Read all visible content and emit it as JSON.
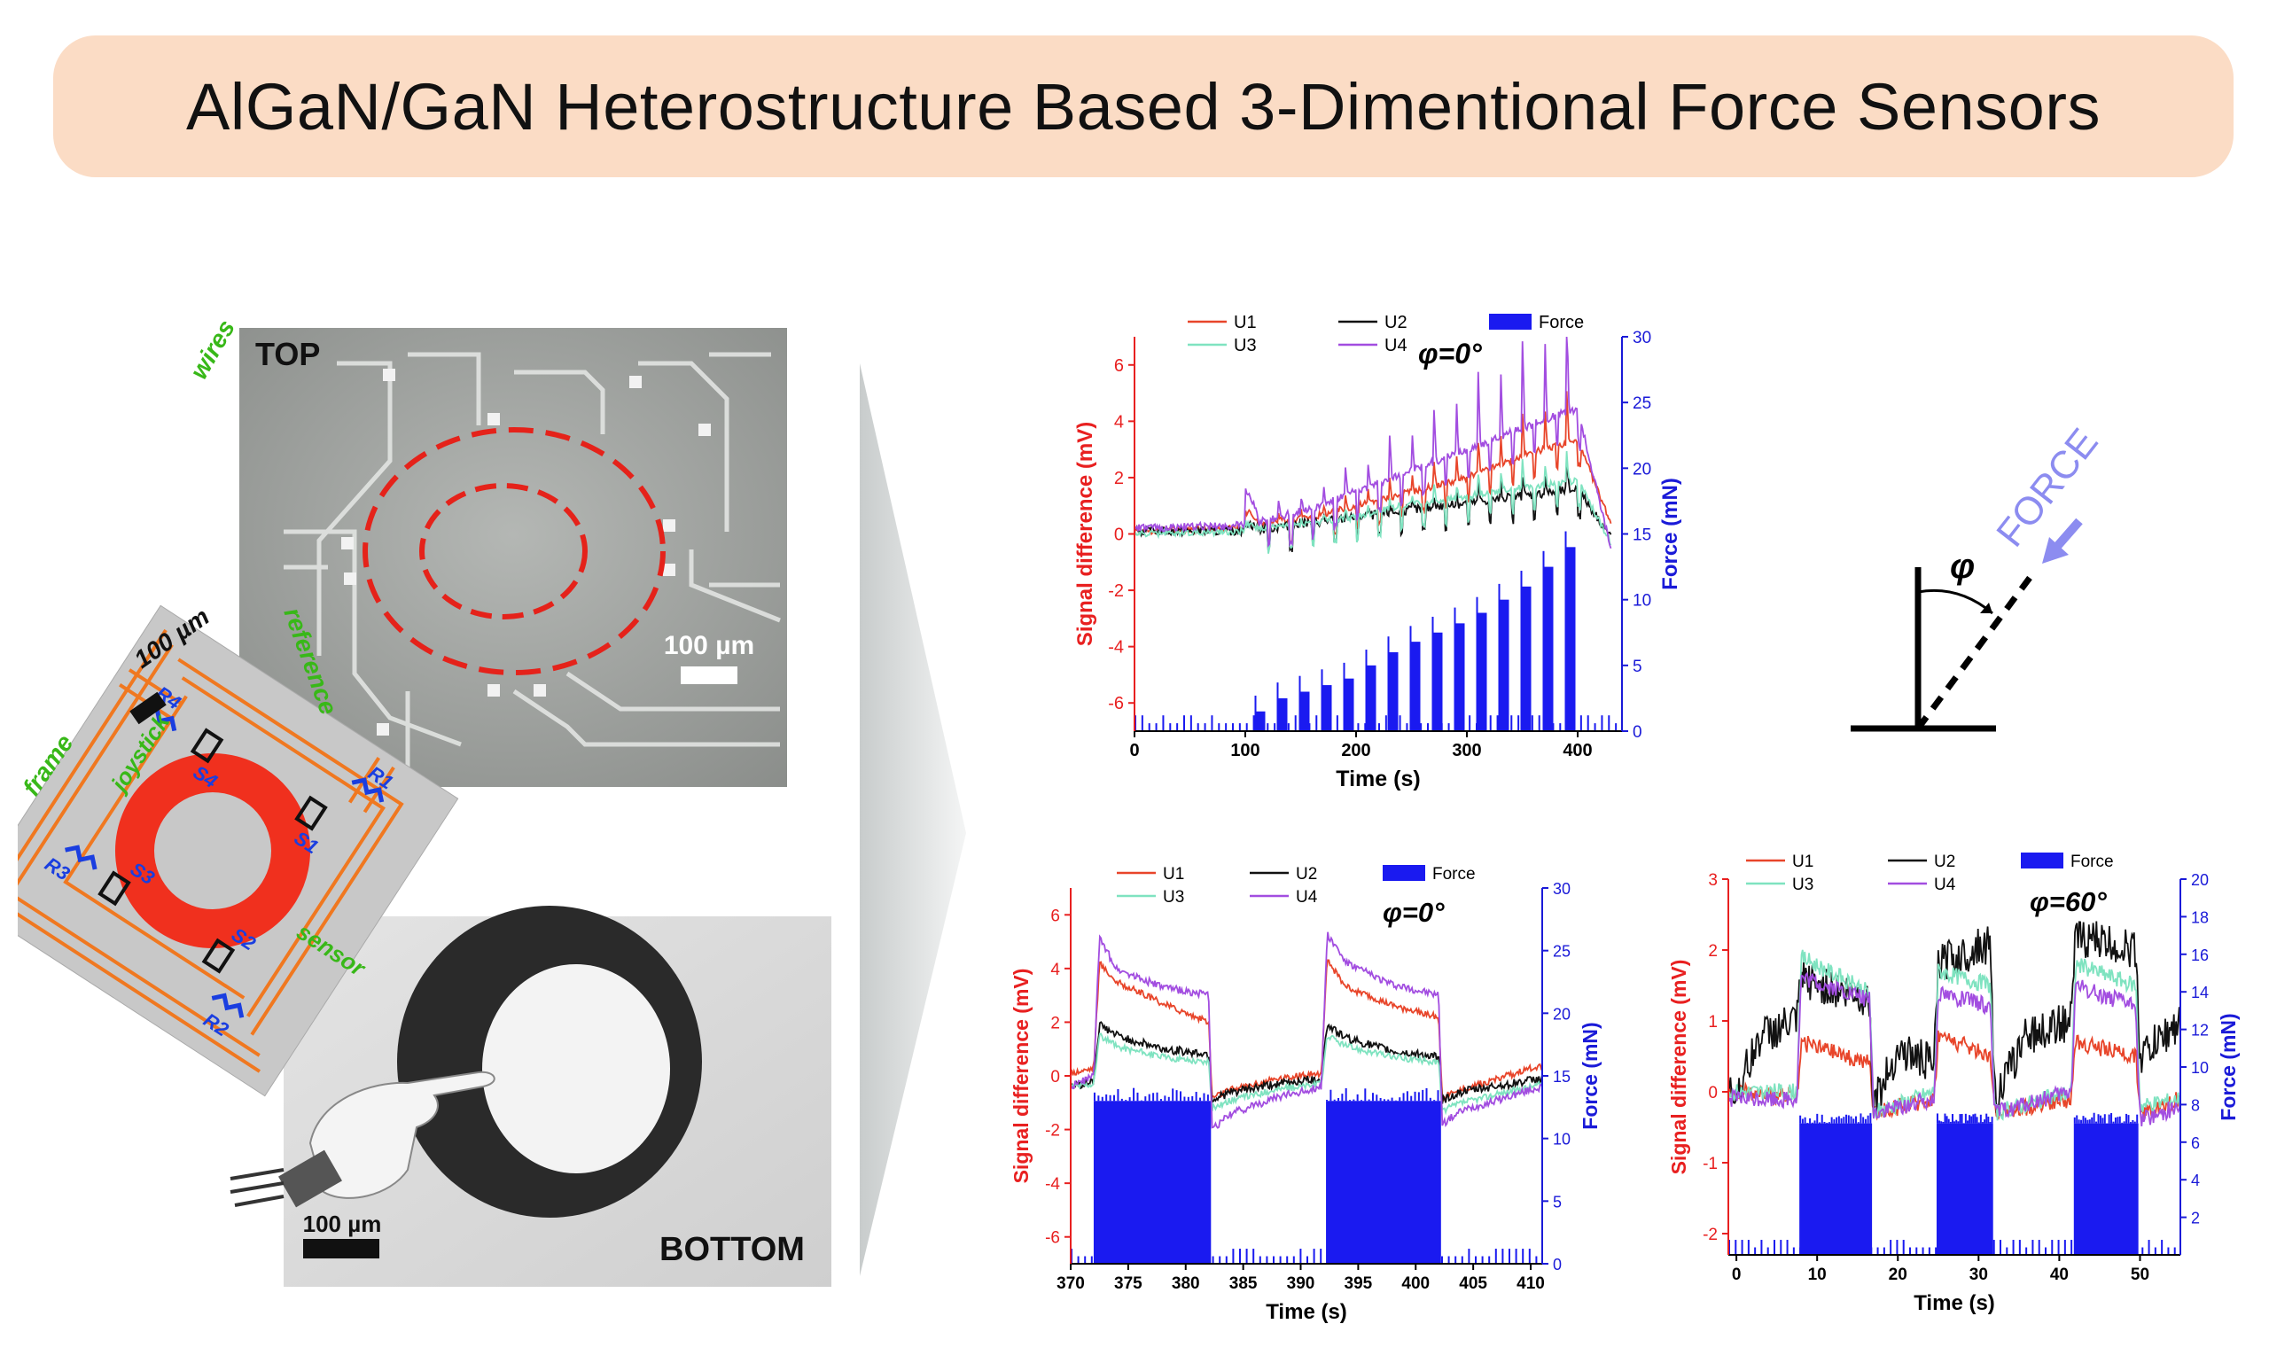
{
  "title": "AlGaN/GaN Heterostructure Based 3-Dimentional Force Sensors",
  "images": {
    "top_label": "TOP",
    "bottom_label": "BOTTOM",
    "top_scale": "100 µm",
    "bottom_scale": "100 µm",
    "schematic_scale": "100 µm",
    "schematic_labels": {
      "wires": "wires",
      "reference": "reference",
      "frame": "frame",
      "sensor": "sensor",
      "joystick": "joystick",
      "S1": "S1",
      "S2": "S2",
      "S3": "S3",
      "S4": "S4",
      "R1": "R1",
      "R2": "R2",
      "R3": "R3",
      "R4": "R4"
    }
  },
  "angle_diagram": {
    "force_label": "FORCE",
    "angle_symbol": "φ"
  },
  "colors": {
    "U1": "#e8452a",
    "U2": "#111111",
    "U3": "#7fe3c0",
    "U4": "#a24de0",
    "Force": "#1a1af0",
    "left_axis": "#e82020",
    "right_axis": "#1a1ad8",
    "banner": "#fbdcc5",
    "ring": "#f0301e",
    "wires": "#f07820",
    "schematic_text": "#38b818",
    "resistor": "#1a3ee0"
  },
  "chart_data": [
    {
      "type": "line",
      "angle_label": "φ=0°",
      "xlabel": "Time (s)",
      "ylabel_left": "Signal difference (mV)",
      "ylabel_right": "Force (mN)",
      "xlim": [
        0,
        440
      ],
      "ylim_left": [
        -7,
        7
      ],
      "ylim_right": [
        0,
        30
      ],
      "xticks": [
        0,
        100,
        200,
        300,
        400
      ],
      "yticks_left": [
        -6,
        -4,
        -2,
        0,
        2,
        4,
        6
      ],
      "yticks_right": [
        0,
        5,
        10,
        15,
        20,
        25,
        30
      ],
      "legend": [
        "U1",
        "U2",
        "U3",
        "U4",
        "Force"
      ],
      "series": [
        {
          "name": "U1",
          "x": [
            0,
            100,
            120,
            140,
            160,
            180,
            200,
            220,
            240,
            260,
            280,
            300,
            320,
            340,
            360,
            380,
            400,
            430
          ],
          "values": [
            0.1,
            0.2,
            0.4,
            0.5,
            0.6,
            0.8,
            1.0,
            1.2,
            1.4,
            1.6,
            1.8,
            2.0,
            2.3,
            2.6,
            2.9,
            3.1,
            3.3,
            0.4
          ]
        },
        {
          "name": "U2",
          "x": [
            0,
            100,
            120,
            140,
            160,
            180,
            200,
            220,
            240,
            260,
            280,
            300,
            320,
            340,
            360,
            380,
            400,
            430
          ],
          "values": [
            0.1,
            0.1,
            0.2,
            0.3,
            0.4,
            0.5,
            0.6,
            0.7,
            0.8,
            0.9,
            1.0,
            1.1,
            1.2,
            1.3,
            1.4,
            1.5,
            1.6,
            -0.1
          ]
        },
        {
          "name": "U3",
          "x": [
            0,
            100,
            120,
            140,
            160,
            180,
            200,
            220,
            240,
            260,
            280,
            300,
            320,
            340,
            360,
            380,
            400,
            430
          ],
          "values": [
            0.0,
            0.1,
            0.2,
            0.3,
            0.4,
            0.5,
            0.6,
            0.8,
            1.0,
            1.1,
            1.2,
            1.3,
            1.5,
            1.6,
            1.7,
            1.8,
            1.9,
            -0.3
          ]
        },
        {
          "name": "U4",
          "x": [
            0,
            100,
            120,
            140,
            160,
            180,
            200,
            220,
            240,
            260,
            280,
            300,
            320,
            340,
            360,
            380,
            400,
            430
          ],
          "values": [
            0.2,
            0.3,
            0.5,
            0.7,
            0.9,
            1.2,
            1.5,
            1.8,
            2.1,
            2.4,
            2.7,
            3.0,
            3.3,
            3.6,
            3.9,
            4.2,
            4.4,
            -0.5
          ]
        }
      ],
      "force_steps": {
        "x": [
          110,
          130,
          150,
          170,
          190,
          210,
          230,
          250,
          270,
          290,
          310,
          330,
          350,
          370,
          390
        ],
        "values": [
          1.5,
          2.5,
          3.0,
          3.5,
          4.0,
          5.0,
          6.0,
          6.8,
          7.5,
          8.2,
          9.0,
          10.0,
          11.0,
          12.5,
          14.0
        ]
      }
    },
    {
      "type": "line",
      "angle_label": "φ=0°",
      "xlabel": "Time (s)",
      "ylabel_left": "Signal difference (mV)",
      "ylabel_right": "Force (mN)",
      "xlim": [
        370,
        411
      ],
      "ylim_left": [
        -7,
        7
      ],
      "ylim_right": [
        0,
        30
      ],
      "xticks": [
        370,
        375,
        380,
        385,
        390,
        395,
        400,
        405,
        410
      ],
      "yticks_left": [
        -6,
        -4,
        -2,
        0,
        2,
        4,
        6
      ],
      "yticks_right": [
        0,
        5,
        10,
        15,
        20,
        25,
        30
      ],
      "legend": [
        "U1",
        "U2",
        "U3",
        "U4",
        "Force"
      ],
      "series": [
        {
          "name": "U1",
          "x": [
            370,
            372,
            372.5,
            374,
            378,
            382,
            382.3,
            384,
            388,
            391.8,
            392.3,
            394,
            398,
            402,
            402.3,
            404,
            411
          ],
          "values": [
            0.1,
            0.3,
            4.2,
            3.5,
            2.7,
            2.0,
            -0.8,
            -0.5,
            -0.1,
            0.1,
            4.3,
            3.3,
            2.6,
            2.2,
            -0.8,
            -0.5,
            0.4
          ]
        },
        {
          "name": "U2",
          "x": [
            370,
            372,
            372.5,
            374,
            378,
            382,
            382.3,
            384,
            388,
            391.8,
            392.3,
            394,
            398,
            402,
            402.3,
            404,
            411
          ],
          "values": [
            -0.4,
            -0.2,
            1.9,
            1.5,
            1.0,
            0.8,
            -0.9,
            -0.6,
            -0.3,
            -0.1,
            1.9,
            1.4,
            0.9,
            0.7,
            -0.9,
            -0.6,
            -0.1
          ]
        },
        {
          "name": "U3",
          "x": [
            370,
            372,
            372.5,
            374,
            378,
            382,
            382.3,
            384,
            388,
            391.8,
            392.3,
            394,
            398,
            402,
            402.3,
            404,
            411
          ],
          "values": [
            -0.4,
            -0.3,
            1.5,
            1.1,
            0.7,
            0.5,
            -1.2,
            -0.9,
            -0.5,
            -0.3,
            1.5,
            1.1,
            0.7,
            0.5,
            -1.3,
            -1.0,
            -0.3
          ]
        },
        {
          "name": "U4",
          "x": [
            370,
            372,
            372.5,
            374,
            378,
            382,
            382.3,
            384,
            388,
            391.8,
            392.3,
            394,
            398,
            402,
            402.3,
            404,
            411
          ],
          "values": [
            -0.4,
            0.0,
            5.1,
            4.0,
            3.3,
            3.0,
            -2.0,
            -1.4,
            -0.8,
            -0.4,
            5.3,
            4.2,
            3.4,
            3.0,
            -1.8,
            -1.3,
            -0.4
          ]
        }
      ],
      "force_pulses": [
        {
          "start": 372,
          "end": 382.2,
          "value": 13
        },
        {
          "start": 392.2,
          "end": 402.2,
          "value": 13
        }
      ]
    },
    {
      "type": "line",
      "angle_label": "φ=60°",
      "xlabel": "Time (s)",
      "ylabel_left": "Signal difference (mV)",
      "ylabel_right": "Force (mN)",
      "xlim": [
        -1,
        55
      ],
      "ylim_left": [
        -2.3,
        3
      ],
      "ylim_right": [
        0,
        20
      ],
      "xticks": [
        0,
        10,
        20,
        30,
        40,
        50
      ],
      "yticks_left": [
        -2,
        -1,
        0,
        1,
        2,
        3
      ],
      "yticks_right": [
        2,
        4,
        6,
        8,
        10,
        12,
        14,
        16,
        18,
        20
      ],
      "legend": [
        "U1",
        "U2",
        "U3",
        "U4",
        "Force"
      ],
      "series": [
        {
          "name": "U1",
          "x": [
            0,
            7.5,
            8,
            16.5,
            17,
            24.5,
            25,
            31.5,
            32,
            41.5,
            42,
            49.5,
            50,
            55
          ],
          "values": [
            0.0,
            -0.1,
            0.7,
            0.4,
            -0.3,
            -0.1,
            0.8,
            0.5,
            -0.3,
            -0.1,
            0.7,
            0.5,
            -0.3,
            -0.1
          ]
        },
        {
          "name": "U2",
          "x": [
            0,
            3,
            7.5,
            8,
            16.5,
            17,
            20,
            24.5,
            25,
            31.5,
            32,
            36,
            41.5,
            42,
            49.5,
            50,
            55
          ],
          "values": [
            0.0,
            0.8,
            1.0,
            1.6,
            1.3,
            -0.2,
            0.6,
            0.4,
            1.8,
            2.1,
            -0.1,
            0.8,
            1.0,
            2.2,
            2.0,
            0.5,
            1.0
          ]
        },
        {
          "name": "U3",
          "x": [
            0,
            7.5,
            8,
            16.5,
            17,
            24.5,
            25,
            31.5,
            32,
            41.5,
            42,
            49.5,
            50,
            55
          ],
          "values": [
            0.0,
            0.0,
            1.9,
            1.4,
            -0.3,
            0.0,
            1.7,
            1.5,
            -0.3,
            0.0,
            1.8,
            1.5,
            -0.2,
            -0.1
          ]
        },
        {
          "name": "U4",
          "x": [
            0,
            7.5,
            8,
            16.5,
            17,
            24.5,
            25,
            31.5,
            32,
            41.5,
            42,
            49.5,
            50,
            55
          ],
          "values": [
            -0.1,
            -0.1,
            1.6,
            1.3,
            -0.3,
            -0.1,
            1.4,
            1.2,
            -0.3,
            0.0,
            1.5,
            1.2,
            -0.4,
            -0.2
          ]
        }
      ],
      "force_pulses": [
        {
          "start": 7.8,
          "end": 16.8,
          "value": 7
        },
        {
          "start": 24.8,
          "end": 31.8,
          "value": 7
        },
        {
          "start": 41.8,
          "end": 49.8,
          "value": 7
        }
      ]
    }
  ]
}
